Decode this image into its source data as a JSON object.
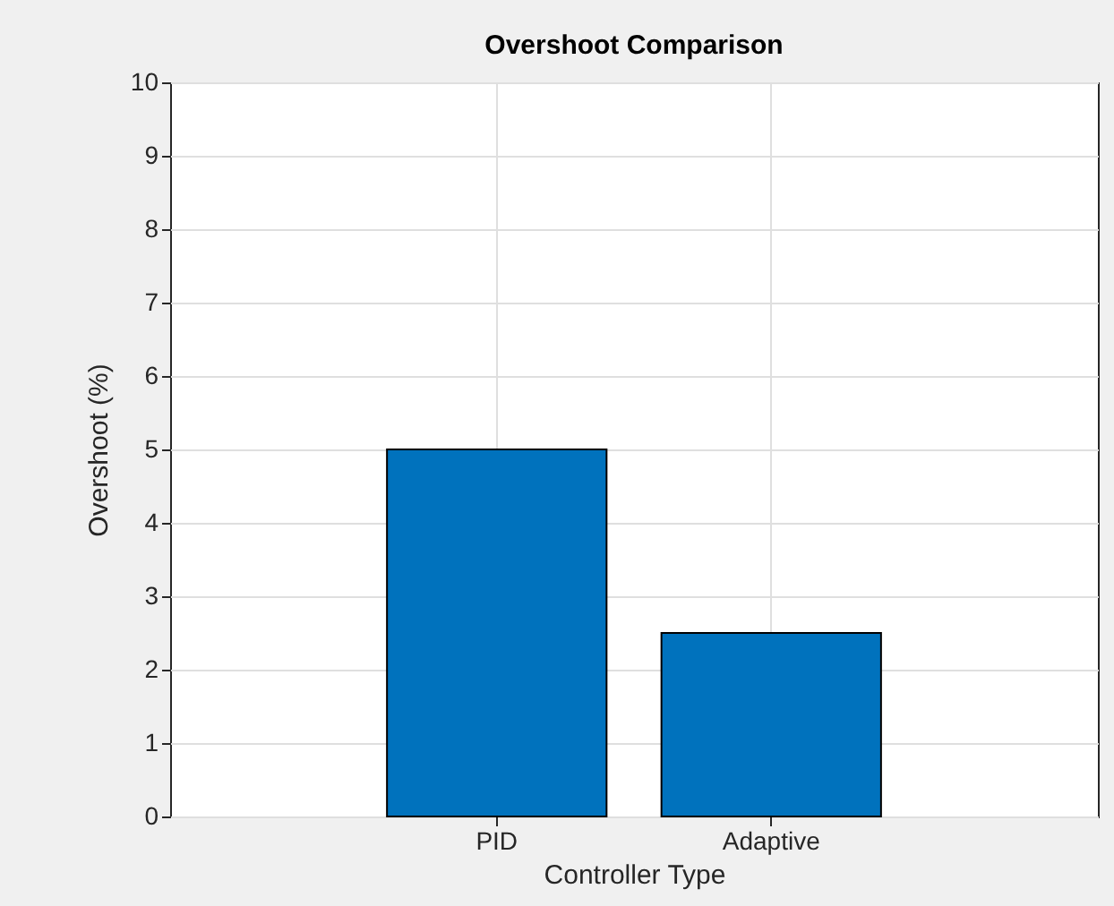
{
  "chart_data": {
    "type": "bar",
    "title": "Overshoot Comparison",
    "xlabel": "Controller Type",
    "ylabel": "Overshoot (%)",
    "categories": [
      "PID",
      "Adaptive"
    ],
    "values": [
      5,
      2.5
    ],
    "color": "#0072bd",
    "ylim": [
      0,
      10
    ],
    "yticks": [
      0,
      1,
      2,
      3,
      4,
      5,
      6,
      7,
      8,
      9,
      10
    ],
    "grid": true
  }
}
